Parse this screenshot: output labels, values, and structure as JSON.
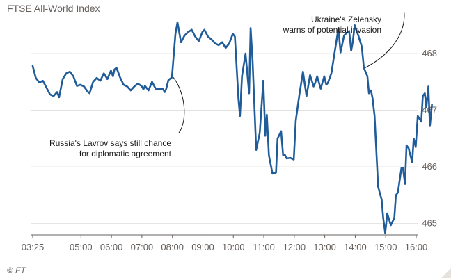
{
  "chart_data": {
    "type": "line",
    "title": "FTSE All-World Index",
    "credit": "© FT",
    "xlabel": "",
    "ylabel": "",
    "x_ticks": [
      "03:25",
      "05:00",
      "06:00",
      "07:00",
      "08:00",
      "09:00",
      "10:00",
      "11:00",
      "12:00",
      "13:00",
      "14:00",
      "15:00",
      "16:00"
    ],
    "y_ticks": [
      465,
      466,
      467,
      468
    ],
    "xlim": [
      "03:25",
      "16:00"
    ],
    "ylim": [
      464.8,
      468.7
    ],
    "y_axis_side": "right",
    "grid": "horizontal",
    "line_color": "#1f5c99",
    "series": [
      {
        "values": [
          [
            "03:25",
            467.78
          ],
          [
            "03:31",
            467.57
          ],
          [
            "03:38",
            467.49
          ],
          [
            "03:45",
            467.52
          ],
          [
            "03:52",
            467.4
          ],
          [
            "03:59",
            467.28
          ],
          [
            "04:06",
            467.25
          ],
          [
            "04:13",
            467.32
          ],
          [
            "04:17",
            467.23
          ],
          [
            "04:24",
            467.55
          ],
          [
            "04:31",
            467.65
          ],
          [
            "04:38",
            467.68
          ],
          [
            "04:45",
            467.6
          ],
          [
            "04:52",
            467.43
          ],
          [
            "04:59",
            467.45
          ],
          [
            "05:06",
            467.42
          ],
          [
            "05:13",
            467.33
          ],
          [
            "05:17",
            467.3
          ],
          [
            "05:24",
            467.5
          ],
          [
            "05:31",
            467.57
          ],
          [
            "05:38",
            467.52
          ],
          [
            "05:45",
            467.65
          ],
          [
            "05:52",
            467.55
          ],
          [
            "05:59",
            467.7
          ],
          [
            "06:03",
            467.6
          ],
          [
            "06:06",
            467.72
          ],
          [
            "06:10",
            467.75
          ],
          [
            "06:17",
            467.58
          ],
          [
            "06:24",
            467.45
          ],
          [
            "06:31",
            467.42
          ],
          [
            "06:38",
            467.35
          ],
          [
            "06:45",
            467.42
          ],
          [
            "06:52",
            467.47
          ],
          [
            "06:59",
            467.43
          ],
          [
            "07:03",
            467.37
          ],
          [
            "07:06",
            467.43
          ],
          [
            "07:13",
            467.35
          ],
          [
            "07:20",
            467.5
          ],
          [
            "07:27",
            467.38
          ],
          [
            "07:34",
            467.37
          ],
          [
            "07:41",
            467.38
          ],
          [
            "07:45",
            467.32
          ],
          [
            "07:48",
            467.38
          ],
          [
            "07:52",
            467.53
          ],
          [
            "07:59",
            467.58
          ],
          [
            "08:06",
            468.35
          ],
          [
            "08:10",
            468.55
          ],
          [
            "08:17",
            468.2
          ],
          [
            "08:24",
            468.32
          ],
          [
            "08:31",
            468.38
          ],
          [
            "08:38",
            468.42
          ],
          [
            "08:45",
            468.3
          ],
          [
            "08:52",
            468.22
          ],
          [
            "08:59",
            468.38
          ],
          [
            "09:03",
            468.42
          ],
          [
            "09:10",
            468.3
          ],
          [
            "09:17",
            468.25
          ],
          [
            "09:24",
            468.18
          ],
          [
            "09:31",
            468.15
          ],
          [
            "09:38",
            468.2
          ],
          [
            "09:45",
            468.1
          ],
          [
            "09:52",
            468.18
          ],
          [
            "09:59",
            468.35
          ],
          [
            "10:03",
            468.3
          ],
          [
            "10:10",
            467.2
          ],
          [
            "10:13",
            466.9
          ],
          [
            "10:17",
            467.6
          ],
          [
            "10:24",
            468.0
          ],
          [
            "10:31",
            467.3
          ],
          [
            "10:34",
            468.45
          ],
          [
            "10:38",
            467.85
          ],
          [
            "10:45",
            466.3
          ],
          [
            "10:52",
            466.6
          ],
          [
            "10:59",
            467.52
          ],
          [
            "11:03",
            466.55
          ],
          [
            "11:06",
            466.92
          ],
          [
            "11:10",
            466.2
          ],
          [
            "11:17",
            465.88
          ],
          [
            "11:24",
            465.9
          ],
          [
            "11:27",
            466.5
          ],
          [
            "11:34",
            466.63
          ],
          [
            "11:38",
            466.2
          ],
          [
            "11:41",
            466.22
          ],
          [
            "11:45",
            466.15
          ],
          [
            "11:52",
            466.16
          ],
          [
            "11:59",
            466.13
          ],
          [
            "12:03",
            466.82
          ],
          [
            "12:10",
            467.27
          ],
          [
            "12:17",
            467.68
          ],
          [
            "12:24",
            467.25
          ],
          [
            "12:31",
            467.62
          ],
          [
            "12:38",
            467.42
          ],
          [
            "12:41",
            467.48
          ],
          [
            "12:45",
            467.6
          ],
          [
            "12:52",
            467.38
          ],
          [
            "12:59",
            467.6
          ],
          [
            "13:03",
            467.45
          ],
          [
            "13:06",
            467.48
          ],
          [
            "13:13",
            467.65
          ],
          [
            "13:20",
            468.05
          ],
          [
            "13:27",
            468.45
          ],
          [
            "13:31",
            468.02
          ],
          [
            "13:38",
            468.32
          ],
          [
            "13:45",
            468.38
          ],
          [
            "13:48",
            468.4
          ],
          [
            "13:52",
            468.05
          ],
          [
            "13:55",
            468.2
          ],
          [
            "13:59",
            468.5
          ],
          [
            "14:06",
            468.32
          ],
          [
            "14:13",
            468.12
          ],
          [
            "14:17",
            467.75
          ],
          [
            "14:24",
            467.6
          ],
          [
            "14:27",
            467.3
          ],
          [
            "14:31",
            467.35
          ],
          [
            "14:34",
            467.22
          ],
          [
            "14:38",
            466.9
          ],
          [
            "14:45",
            465.65
          ],
          [
            "14:52",
            465.42
          ],
          [
            "14:55",
            465.1
          ],
          [
            "14:59",
            464.83
          ],
          [
            "15:03",
            465.18
          ],
          [
            "15:10",
            464.97
          ],
          [
            "15:17",
            465.1
          ],
          [
            "15:20",
            465.5
          ],
          [
            "15:24",
            465.55
          ],
          [
            "15:31",
            465.98
          ],
          [
            "15:34",
            465.98
          ],
          [
            "15:38",
            465.7
          ],
          [
            "15:41",
            466.38
          ],
          [
            "15:45",
            466.33
          ],
          [
            "15:52",
            466.08
          ],
          [
            "15:55",
            466.5
          ],
          [
            "15:59",
            466.35
          ],
          [
            "16:03",
            466.9
          ],
          [
            "16:10",
            466.8
          ],
          [
            "16:13",
            467.25
          ],
          [
            "16:17",
            467.3
          ],
          [
            "16:20",
            467.05
          ],
          [
            "16:24",
            467.42
          ],
          [
            "16:27",
            466.72
          ],
          [
            "16:31",
            467.1
          ]
        ]
      }
    ],
    "annotations": [
      {
        "lines": [
          "Russia's Lavrov says still chance",
          "for diplomatic agreement"
        ],
        "point": [
          "07:59",
          467.58
        ]
      },
      {
        "lines": [
          "Ukraine's Zelensky",
          "warns of potential invasion"
        ],
        "point": [
          "14:17",
          467.75
        ]
      }
    ]
  }
}
